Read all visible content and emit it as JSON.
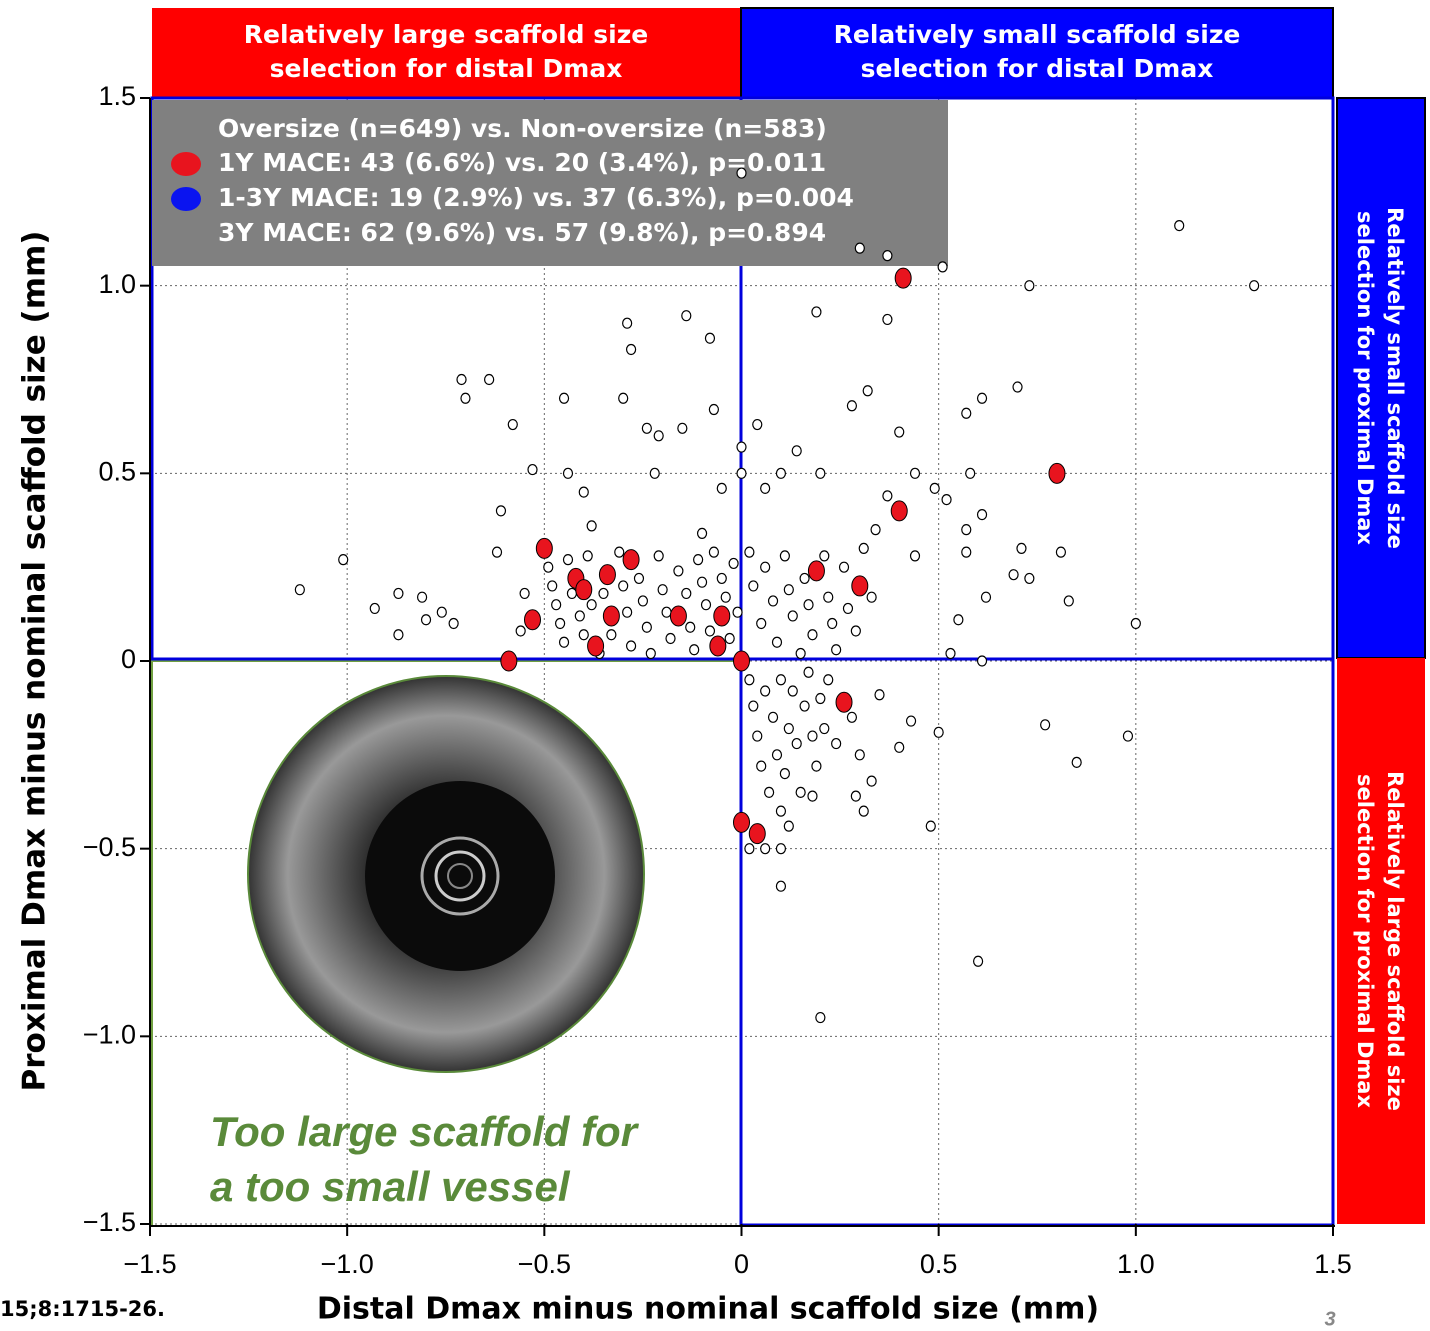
{
  "chart_data": {
    "type": "scatter",
    "x_label": "Distal Dmax minus nominal scaffold size (mm)",
    "y_label": "Proximal Dmax minus nominal scaffold size (mm)",
    "xlim": [
      -1.5,
      1.5
    ],
    "ylim": [
      -1.5,
      1.5
    ],
    "xticks": [
      {
        "value": -1.5,
        "label": "−1.5"
      },
      {
        "value": -1.0,
        "label": "−1.0"
      },
      {
        "value": -0.5,
        "label": "−0.5"
      },
      0,
      0.5,
      {
        "value": 1.0,
        "label": "1.0"
      },
      1.5
    ],
    "yticks": [
      {
        "value": -1.5,
        "label": "−1.5"
      },
      {
        "value": -1.0,
        "label": "−1.0"
      },
      {
        "value": -0.5,
        "label": "−0.5"
      },
      0,
      0.5,
      {
        "value": 1.0,
        "label": "1.0"
      },
      1.5
    ],
    "grid": true,
    "legend_title": "Oversize (n=649) vs. Non-oversize (n=583)",
    "legend_note": "3Y MACE: 62 (9.6%) vs. 57 (9.8%), p=0.894",
    "series": [
      {
        "color": "#ffffff",
        "x": [
          -1.12,
          -1.01,
          -0.93,
          -0.87,
          -0.87,
          -0.81,
          -0.8,
          -0.76,
          -0.73,
          -0.71,
          -0.7,
          -0.64,
          -0.62,
          -0.61,
          -0.58,
          -0.53,
          -0.45,
          -0.44,
          -0.4,
          -0.38,
          -0.3,
          -0.29,
          -0.28,
          -0.24,
          -0.22,
          -0.21,
          -0.15,
          -0.14,
          -0.08,
          -0.07,
          -0.1,
          -0.05,
          0.0,
          0.0,
          0.0,
          0.06,
          0.04,
          0.1,
          0.14,
          0.2,
          0.28,
          0.32,
          0.37,
          0.3,
          0.19,
          0.37,
          0.4,
          0.44,
          0.37,
          0.49,
          0.52,
          0.51,
          0.58,
          0.57,
          0.61,
          0.57,
          0.61,
          0.7,
          0.73,
          0.71,
          0.62,
          0.69,
          0.73,
          0.81,
          0.83,
          1.0,
          1.11,
          1.3,
          0.55,
          0.44,
          0.57,
          0.53,
          0.61,
          -0.49,
          -0.48,
          -0.47,
          -0.46,
          -0.45,
          -0.44,
          -0.43,
          -0.41,
          -0.4,
          -0.39,
          -0.38,
          -0.36,
          -0.35,
          -0.33,
          -0.31,
          -0.3,
          -0.29,
          -0.28,
          -0.26,
          -0.25,
          -0.24,
          -0.23,
          -0.21,
          -0.2,
          -0.19,
          -0.18,
          -0.16,
          -0.14,
          -0.13,
          -0.12,
          -0.11,
          -0.1,
          -0.09,
          -0.08,
          -0.07,
          -0.05,
          -0.04,
          -0.03,
          -0.02,
          -0.01,
          0.02,
          0.03,
          0.05,
          0.06,
          0.08,
          0.09,
          0.11,
          0.12,
          0.13,
          0.15,
          0.16,
          0.17,
          0.18,
          0.21,
          0.22,
          0.23,
          0.24,
          0.26,
          0.27,
          0.29,
          0.31,
          0.33,
          0.34,
          -0.55,
          -0.56,
          0.02,
          0.03,
          0.04,
          0.05,
          0.06,
          0.07,
          0.08,
          0.09,
          0.1,
          0.1,
          0.11,
          0.12,
          0.13,
          0.14,
          0.15,
          0.16,
          0.17,
          0.18,
          0.19,
          0.2,
          0.21,
          0.22,
          0.24,
          0.28,
          0.3,
          0.29,
          0.31,
          0.33,
          0.35,
          0.4,
          0.43,
          0.5,
          0.48,
          0.77,
          0.98,
          0.85,
          0.6,
          0.2,
          0.1,
          0.1,
          0.06,
          0.02,
          0.12,
          0.18
        ],
        "y": [
          0.19,
          0.27,
          0.14,
          0.18,
          0.07,
          0.17,
          0.11,
          0.13,
          0.1,
          0.75,
          0.7,
          0.75,
          0.29,
          0.4,
          0.63,
          0.51,
          0.7,
          0.5,
          0.45,
          0.36,
          0.7,
          0.9,
          0.83,
          0.62,
          0.5,
          0.6,
          0.62,
          0.92,
          0.86,
          0.67,
          0.34,
          0.46,
          1.3,
          0.57,
          0.5,
          0.46,
          0.63,
          0.5,
          0.56,
          0.5,
          0.68,
          0.72,
          1.08,
          1.1,
          0.93,
          0.91,
          0.61,
          0.5,
          0.44,
          0.46,
          0.43,
          1.05,
          0.5,
          0.66,
          0.7,
          0.35,
          0.39,
          0.73,
          1.0,
          0.3,
          0.17,
          0.23,
          0.22,
          0.29,
          0.16,
          0.1,
          1.16,
          1.0,
          0.11,
          0.28,
          0.29,
          0.02,
          0.0,
          0.25,
          0.2,
          0.15,
          0.1,
          0.05,
          0.27,
          0.18,
          0.12,
          0.07,
          0.28,
          0.15,
          0.02,
          0.18,
          0.07,
          0.29,
          0.2,
          0.13,
          0.04,
          0.22,
          0.16,
          0.09,
          0.02,
          0.28,
          0.19,
          0.13,
          0.06,
          0.24,
          0.18,
          0.09,
          0.03,
          0.27,
          0.21,
          0.15,
          0.08,
          0.29,
          0.22,
          0.17,
          0.06,
          0.26,
          0.13,
          0.29,
          0.2,
          0.1,
          0.25,
          0.16,
          0.05,
          0.28,
          0.19,
          0.12,
          0.02,
          0.22,
          0.15,
          0.07,
          0.28,
          0.17,
          0.1,
          0.03,
          0.25,
          0.14,
          0.08,
          0.3,
          0.17,
          0.35,
          0.18,
          0.08,
          -0.05,
          -0.12,
          -0.2,
          -0.28,
          -0.08,
          -0.35,
          -0.15,
          -0.25,
          -0.05,
          -0.4,
          -0.3,
          -0.18,
          -0.08,
          -0.22,
          -0.35,
          -0.12,
          -0.03,
          -0.2,
          -0.28,
          -0.1,
          -0.18,
          -0.05,
          -0.22,
          -0.15,
          -0.25,
          -0.36,
          -0.4,
          -0.32,
          -0.09,
          -0.23,
          -0.16,
          -0.19,
          -0.44,
          -0.17,
          -0.2,
          -0.27,
          -0.8,
          -0.95,
          -0.6,
          -0.5,
          -0.5,
          -0.5,
          -0.44,
          -0.36
        ]
      },
      {
        "name": "1Y MACE: 43 (6.6%) vs. 20 (3.4%), p=0.011",
        "color": "#e8141e",
        "x": [
          -0.5,
          -0.42,
          -0.4,
          -0.34,
          -0.28,
          -0.53,
          -0.33,
          -0.37,
          -0.16,
          -0.05,
          -0.06,
          -0.59,
          0.0,
          0.19,
          0.3,
          0.4,
          0.41,
          0.8,
          0.26,
          0.0,
          0.04
        ],
        "y": [
          0.3,
          0.22,
          0.19,
          0.23,
          0.27,
          0.11,
          0.12,
          0.04,
          0.12,
          0.12,
          0.04,
          0.0,
          0.0,
          0.24,
          0.2,
          0.4,
          1.02,
          0.5,
          -0.11,
          -0.43,
          -0.46
        ]
      },
      {
        "name": "1-3Y MACE: 19 (2.9%) vs. 37 (6.3%), p=0.004",
        "color": "#0a14f0",
        "x": [],
        "y": []
      }
    ],
    "banners": {
      "top_left": [
        "Relatively large scaffold size",
        "selection for distal Dmax"
      ],
      "top_right": [
        "Relatively small scaffold size",
        "selection for distal Dmax"
      ],
      "right_top": [
        "Relatively small scaffold size",
        "selection for proximal Dmax"
      ],
      "right_bottom": [
        "Relatively large scaffold size",
        "selection for proximal Dmax"
      ]
    },
    "quadrant_annotation": [
      "Too large scaffold for",
      "a too small vessel"
    ],
    "citation": "15;8:1715-26.",
    "page_number": "3"
  }
}
